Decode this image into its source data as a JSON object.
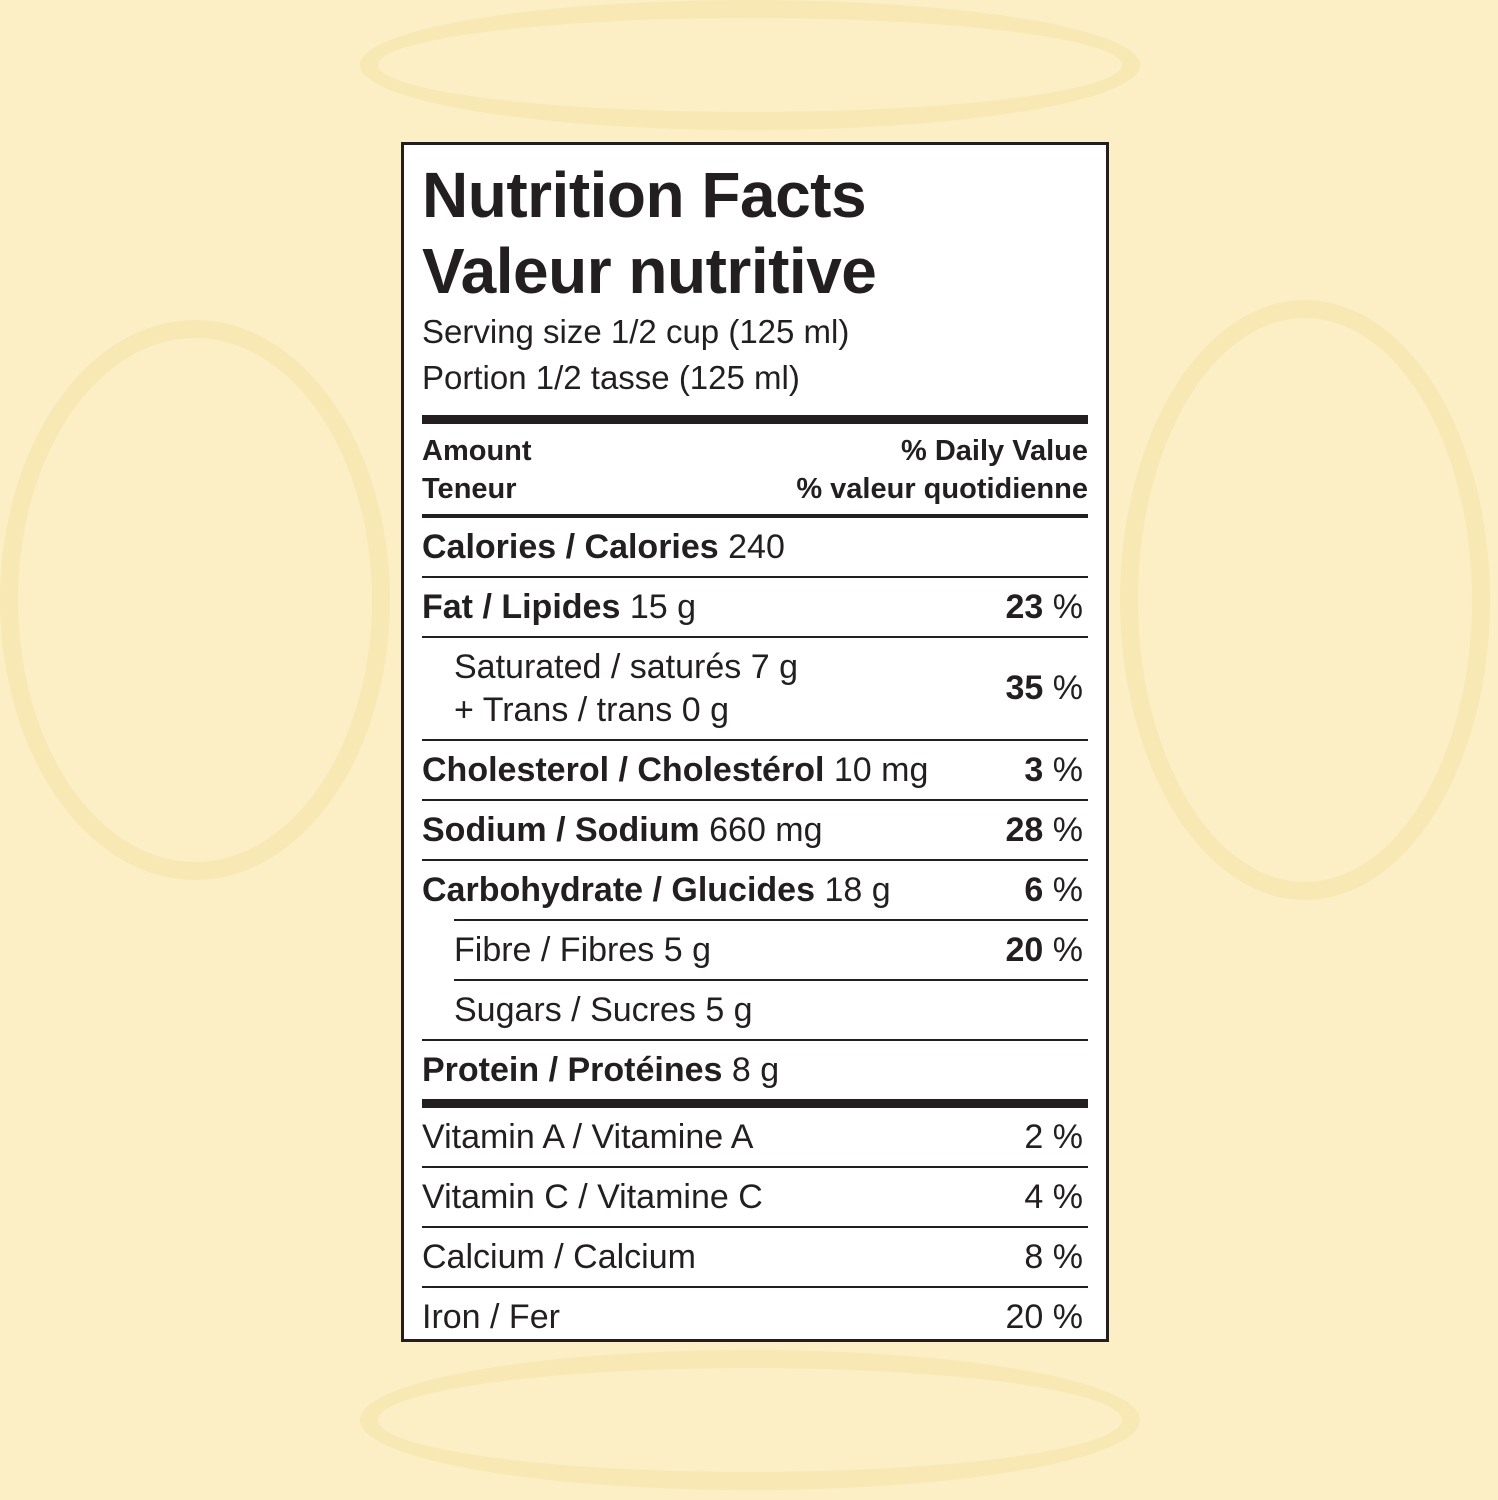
{
  "background_color": "#fcefc5",
  "title_en": "Nutrition Facts",
  "title_fr": "Valeur nutritive",
  "serving_en": "Serving size 1/2 cup (125 ml)",
  "serving_fr": "Portion 1/2 tasse (125 ml)",
  "header": {
    "amount_en": "Amount",
    "amount_fr": "Teneur",
    "dv_en": "% Daily Value",
    "dv_fr": "% valeur quotidienne"
  },
  "calories": {
    "label": "Calories / Calories",
    "value": "240"
  },
  "fat": {
    "label": "Fat / Lipides",
    "value": "15 g",
    "pct": "23",
    "unit": "%"
  },
  "saturated": {
    "label": "Saturated / saturés 7 g",
    "trans": "+ Trans / trans 0 g",
    "pct": "35",
    "unit": "%"
  },
  "cholesterol": {
    "label": "Cholesterol / Cholestérol",
    "value": "10 mg",
    "pct": "3",
    "unit": "%"
  },
  "sodium": {
    "label": "Sodium / Sodium",
    "value": "660 mg",
    "pct": "28",
    "unit": "%"
  },
  "carbohydrate": {
    "label": "Carbohydrate / Glucides",
    "value": "18 g",
    "pct": "6",
    "unit": "%"
  },
  "fibre": {
    "label": "Fibre / Fibres 5 g",
    "pct": "20",
    "unit": "%"
  },
  "sugars": {
    "label": "Sugars / Sucres 5 g"
  },
  "protein": {
    "label": "Protein / Protéines",
    "value": "8 g"
  },
  "vitamins": [
    {
      "label": "Vitamin A / Vitamine A",
      "pct": "2 %"
    },
    {
      "label": "Vitamin C / Vitamine C",
      "pct": "4 %"
    },
    {
      "label": "Calcium / Calcium",
      "pct": "8 %"
    },
    {
      "label": "Iron / Fer",
      "pct": "20 %"
    }
  ]
}
